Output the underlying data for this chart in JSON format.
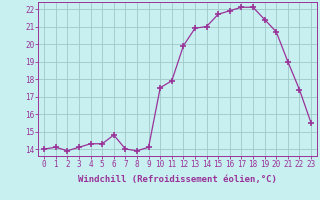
{
  "x": [
    0,
    1,
    2,
    3,
    4,
    5,
    6,
    7,
    8,
    9,
    10,
    11,
    12,
    13,
    14,
    15,
    16,
    17,
    18,
    19,
    20,
    21,
    22,
    23
  ],
  "y": [
    14.0,
    14.1,
    13.9,
    14.1,
    14.3,
    14.3,
    14.8,
    14.0,
    13.9,
    14.1,
    17.5,
    17.9,
    19.9,
    20.9,
    21.0,
    21.7,
    21.9,
    22.1,
    22.1,
    21.4,
    20.7,
    19.0,
    17.4,
    15.5
  ],
  "line_color": "#993399",
  "marker": "+",
  "marker_size": 4,
  "marker_lw": 1.2,
  "background_color": "#c8f0f0",
  "grid_color": "#a0c8c8",
  "xlim": [
    -0.5,
    23.5
  ],
  "ylim": [
    13.6,
    22.4
  ],
  "yticks": [
    14,
    15,
    16,
    17,
    18,
    19,
    20,
    21,
    22
  ],
  "xticks": [
    0,
    1,
    2,
    3,
    4,
    5,
    6,
    7,
    8,
    9,
    10,
    11,
    12,
    13,
    14,
    15,
    16,
    17,
    18,
    19,
    20,
    21,
    22,
    23
  ],
  "xlabel": "Windchill (Refroidissement éolien,°C)",
  "xlabel_fontsize": 6.5,
  "tick_fontsize": 5.5,
  "tick_color": "#993399",
  "label_color": "#993399",
  "spine_color": "#993399",
  "line_width": 0.9
}
